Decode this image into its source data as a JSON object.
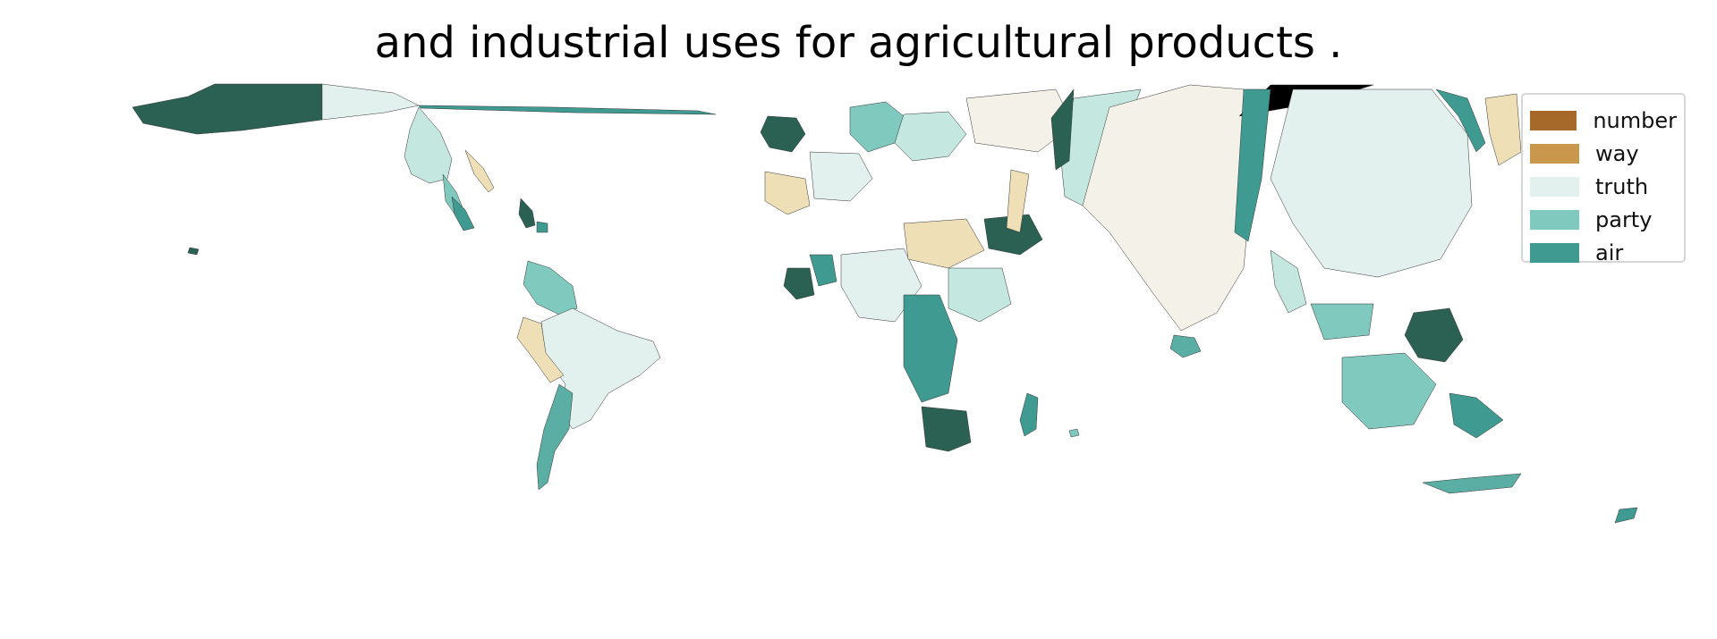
{
  "title": "and industrial uses for agricultural products .",
  "legend": [
    {
      "label": "number",
      "color": "#a6692a"
    },
    {
      "label": "way",
      "color": "#c9984d"
    },
    {
      "label": "truth",
      "color": "#e2f1ee"
    },
    {
      "label": "party",
      "color": "#7fc9bf"
    },
    {
      "label": "air",
      "color": "#3f9a91"
    }
  ],
  "extra_colors": {
    "dark_teal": "#2a6153",
    "light_teal": "#c4e8e0",
    "mid_teal": "#5aaea4",
    "beige": "#f4f1e9",
    "tan": "#efdfb7"
  }
}
